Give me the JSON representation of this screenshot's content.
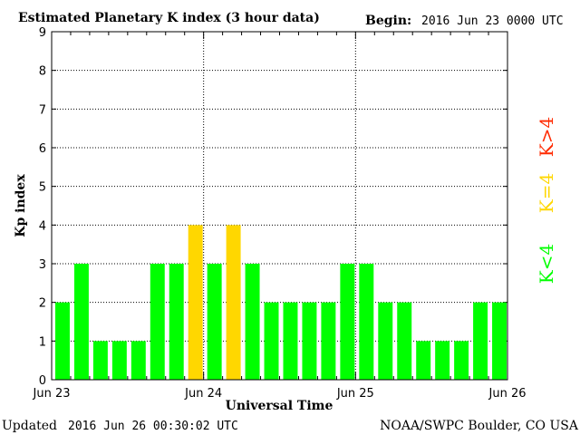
{
  "colors": {
    "green": "#00ff00",
    "yellow": "#ffd700",
    "red": "#ff2a00",
    "grid": "#000000"
  },
  "header": {
    "begin_label": "Begin:",
    "begin_value": "2016 Jun 23 0000 UTC"
  },
  "footer": {
    "updated_label": "Updated",
    "updated_value": "2016 Jun 26 00:30:02 UTC",
    "credit": "NOAA/SWPC Boulder, CO USA"
  },
  "legend": {
    "low": "K<4",
    "mid": "K=4",
    "high": "K>4"
  },
  "chart_data": {
    "type": "bar",
    "title": "Estimated Planetary K index (3 hour data)",
    "xlabel": "Universal Time",
    "ylabel": "Kp index",
    "ylim": [
      0,
      9
    ],
    "y_ticks": [
      "0",
      "1",
      "2",
      "3",
      "4",
      "5",
      "6",
      "7",
      "8",
      "9"
    ],
    "x_tick_labels": [
      "Jun 23",
      "Jun 24",
      "Jun 25",
      "Jun 26"
    ],
    "grid": true,
    "interval_hours": 3,
    "values": [
      2,
      3,
      1,
      1,
      1,
      3,
      3,
      4,
      3,
      4,
      3,
      2,
      2,
      2,
      2,
      3,
      3,
      2,
      2,
      1,
      1,
      1,
      2,
      2
    ]
  }
}
